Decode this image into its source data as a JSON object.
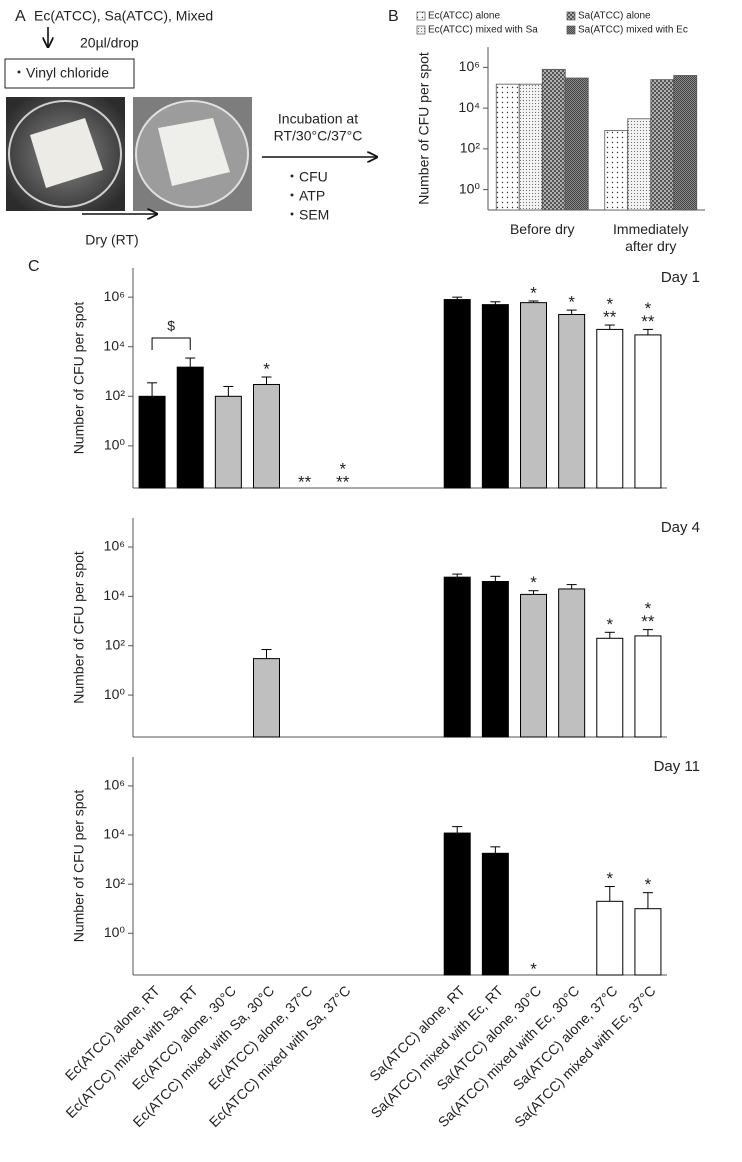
{
  "panel_labels": [
    "A",
    "B",
    "C"
  ],
  "diagram": {
    "samples": "Ec(ATCC), Sa(ATCC), Mixed",
    "volume": "20µl/drop",
    "material": "・Vinyl chloride",
    "incubation": [
      "Incubation at",
      "RT/30°C/37°C"
    ],
    "assays": [
      "・CFU",
      "・ATP",
      "・SEM"
    ],
    "drying": "Dry (RT)"
  },
  "chart_data": [
    {
      "type": "bar",
      "y_label": "Number of CFU per spot",
      "categories": [
        "Before dry",
        "Immediately after dry"
      ],
      "series": [
        {
          "name": "Ec(ATCC) alone",
          "color": "#ffffff",
          "pattern": "sparse-dots",
          "values": [
            150000,
            800
          ]
        },
        {
          "name": "Ec(ATCC) mixed with Sa",
          "color": "#f2f2f2",
          "pattern": "dense-dots",
          "values": [
            150000,
            3000
          ]
        },
        {
          "name": "Sa(ATCC) alone",
          "color": "#b0b0b0",
          "pattern": "checker",
          "values": [
            800000,
            250000
          ]
        },
        {
          "name": "Sa(ATCC) mixed with Ec",
          "color": "#8a8a8a",
          "pattern": "fine-checker",
          "values": [
            300000,
            400000
          ]
        }
      ],
      "log_scale": true,
      "ylim": [
        0.1,
        10000000
      ],
      "yticks": [
        {
          "value": 1,
          "label": "10⁰"
        },
        {
          "value": 100,
          "label": "10²"
        },
        {
          "value": 10000,
          "label": "10⁴"
        },
        {
          "value": 1000000,
          "label": "10⁶"
        }
      ],
      "legend": "top"
    },
    {
      "type": "bar",
      "title": "Day 1",
      "y_label": "Number of CFU per spot",
      "log_scale": true,
      "ylim": [
        0.02,
        15000000
      ],
      "yticks": [
        {
          "value": 1,
          "label": "10⁰"
        },
        {
          "value": 100,
          "label": "10²"
        },
        {
          "value": 10000,
          "label": "10⁴"
        },
        {
          "value": 1000000,
          "label": "10⁶"
        }
      ],
      "colors": [
        "#000000",
        "#000000",
        "#bfbfbf",
        "#bfbfbf",
        "#ffffff",
        "#ffffff",
        null,
        null,
        "#000000",
        "#000000",
        "#bfbfbf",
        "#bfbfbf",
        "#ffffff",
        "#ffffff"
      ],
      "values": [
        100,
        1500,
        100,
        300,
        null,
        null,
        null,
        null,
        800000,
        500000,
        600000,
        200000,
        50000,
        30000
      ],
      "errors": [
        250,
        2000,
        150,
        300,
        null,
        null,
        null,
        null,
        200000,
        150000,
        100000,
        100000,
        25000,
        20000
      ],
      "annotations": [
        null,
        null,
        null,
        [
          "*"
        ],
        [
          "**"
        ],
        [
          "*",
          "**"
        ],
        null,
        null,
        null,
        null,
        [
          "*"
        ],
        [
          "*"
        ],
        [
          "*",
          "**"
        ],
        [
          "*",
          "**"
        ]
      ],
      "comparisons": [
        {
          "label": "$",
          "categories": [
            0,
            1
          ]
        }
      ]
    },
    {
      "type": "bar",
      "title": "Day 4",
      "y_label": "Number of CFU per spot",
      "log_scale": true,
      "ylim": [
        0.02,
        15000000
      ],
      "yticks": [
        {
          "value": 1,
          "label": "10⁰"
        },
        {
          "value": 100,
          "label": "10²"
        },
        {
          "value": 10000,
          "label": "10⁴"
        },
        {
          "value": 1000000,
          "label": "10⁶"
        }
      ],
      "colors": [
        "#000000",
        "#000000",
        "#bfbfbf",
        "#bfbfbf",
        "#ffffff",
        "#ffffff",
        null,
        null,
        "#000000",
        "#000000",
        "#bfbfbf",
        "#bfbfbf",
        "#ffffff",
        "#ffffff"
      ],
      "values": [
        null,
        null,
        null,
        30,
        null,
        null,
        null,
        null,
        60000,
        40000,
        12000,
        20000,
        200,
        250
      ],
      "errors": [
        null,
        null,
        null,
        40,
        null,
        null,
        null,
        null,
        20000,
        25000,
        5000,
        10000,
        150,
        200
      ],
      "annotations": [
        null,
        null,
        null,
        null,
        null,
        null,
        null,
        null,
        null,
        null,
        [
          "*"
        ],
        null,
        [
          "*"
        ],
        [
          "*",
          "**"
        ]
      ]
    },
    {
      "type": "bar",
      "title": "Day 11",
      "y_label": "Number of CFU per spot",
      "log_scale": true,
      "ylim": [
        0.02,
        15000000
      ],
      "yticks": [
        {
          "value": 1,
          "label": "10⁰"
        },
        {
          "value": 100,
          "label": "10²"
        },
        {
          "value": 10000,
          "label": "10⁴"
        },
        {
          "value": 1000000,
          "label": "10⁶"
        }
      ],
      "categories": [
        "Ec(ATCC) alone, RT",
        "Ec(ATCC) mixed with Sa, RT",
        "Ec(ATCC) alone, 30°C",
        "Ec(ATCC) mixed  with Sa, 30°C",
        "Ec(ATCC) alone, 37°C",
        "Ec(ATCC) mixed with Sa, 37°C",
        null,
        null,
        "Sa(ATCC) alone, RT",
        "Sa(ATCC) mixed with Ec, RT",
        "Sa(ATCC) alone, 30°C",
        "Sa(ATCC) mixed with Ec, 30°C",
        "Sa(ATCC) alone, 37°C",
        "Sa(ATCC) mixed with Ec, 37°C"
      ],
      "colors": [
        "#000000",
        "#000000",
        "#bfbfbf",
        "#bfbfbf",
        "#ffffff",
        "#ffffff",
        null,
        null,
        "#000000",
        "#000000",
        "#bfbfbf",
        "#bfbfbf",
        "#ffffff",
        "#ffffff"
      ],
      "values": [
        null,
        null,
        null,
        null,
        null,
        null,
        null,
        null,
        12000,
        1800,
        null,
        null,
        20,
        10
      ],
      "errors": [
        null,
        null,
        null,
        null,
        null,
        null,
        null,
        null,
        10000,
        1500,
        null,
        null,
        60,
        35
      ],
      "annotations": [
        null,
        null,
        null,
        null,
        null,
        null,
        null,
        null,
        null,
        null,
        [
          "*"
        ],
        null,
        [
          "*"
        ],
        [
          "*"
        ]
      ]
    }
  ]
}
